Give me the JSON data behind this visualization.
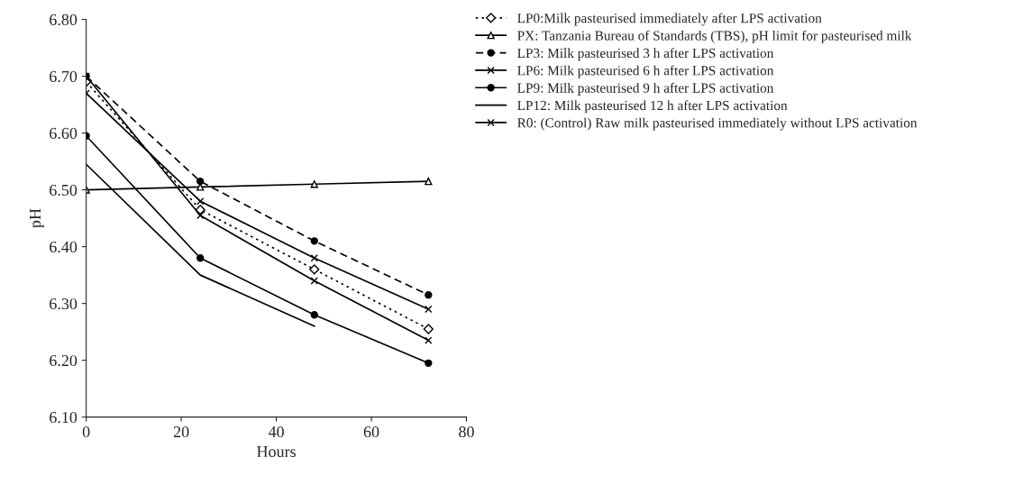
{
  "chart_data": {
    "type": "line",
    "xlabel": "Hours",
    "ylabel": "pH",
    "x": [
      0,
      24,
      48,
      72
    ],
    "xlim": [
      0,
      80
    ],
    "xticks": [
      0,
      20,
      40,
      60,
      80
    ],
    "ylim": [
      6.1,
      6.8
    ],
    "yticks": [
      {
        "value": 6.1,
        "label": "6.10"
      },
      {
        "value": 6.2,
        "label": "6.20"
      },
      {
        "value": 6.3,
        "label": "6.30"
      },
      {
        "value": 6.4,
        "label": "6.40"
      },
      {
        "value": 6.5,
        "label": "6.50"
      },
      {
        "value": 6.6,
        "label": "6.60"
      },
      {
        "value": 6.7,
        "label": "6.70"
      },
      {
        "value": 6.8,
        "label": "6.80"
      }
    ],
    "grid": false,
    "legend": "top right",
    "series": [
      {
        "name": "LP0:Milk pasteurised immediately after LPS activation",
        "color": "#000000",
        "marker": "diamond",
        "line_style": "dotted",
        "values": [
          6.69,
          6.465,
          6.36,
          6.255
        ]
      },
      {
        "name": "PX: Tanzania Bureau of Standards (TBS), pH limit for pasteurised milk",
        "color": "#000000",
        "marker": "triangle",
        "line_style": "solid",
        "values": [
          6.5,
          6.505,
          6.51,
          6.515
        ]
      },
      {
        "name": "LP3: Milk pasteurised 3 h after LPS activation",
        "color": "#000000",
        "marker": "circle",
        "line_style": "dashed",
        "values": [
          6.7,
          6.515,
          6.41,
          6.315
        ]
      },
      {
        "name": "LP6: Milk pasteurised 6 h after LPS activation",
        "color": "#000000",
        "marker": "cross",
        "line_style": "solid",
        "values": [
          6.67,
          6.48,
          6.38,
          6.29
        ]
      },
      {
        "name": "LP9: Milk pasteurised 9 h after LPS activation",
        "color": "#000000",
        "marker": "circle",
        "line_style": "solid",
        "values": [
          6.595,
          6.38,
          6.28,
          6.195
        ]
      },
      {
        "name": "LP12: Milk pasteurised 12 h after LPS activation",
        "color": "#000000",
        "marker": "none",
        "line_style": "solid",
        "values": [
          6.545,
          6.35,
          6.26,
          null
        ]
      },
      {
        "name": "R0: (Control) Raw milk pasteurised immediately without LPS activation",
        "color": "#000000",
        "marker": "cross",
        "line_style": "solid",
        "values": [
          6.7,
          6.455,
          6.34,
          6.235
        ]
      }
    ]
  }
}
